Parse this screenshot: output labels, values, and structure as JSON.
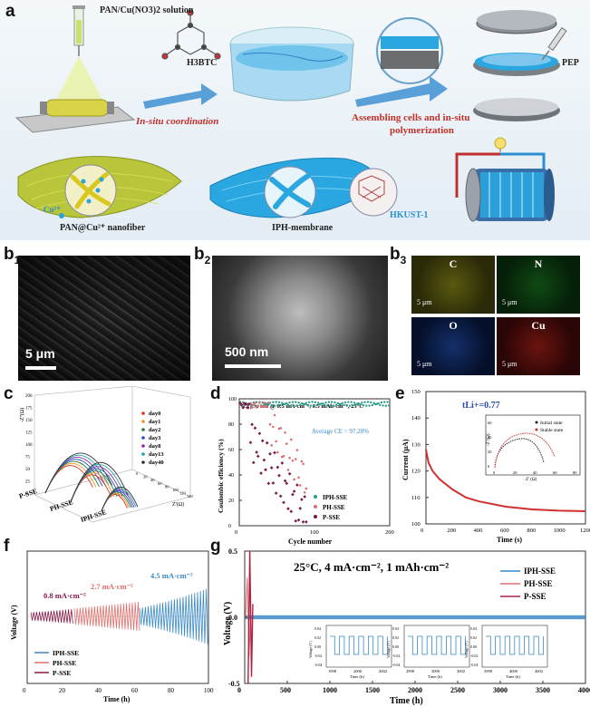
{
  "panel_a": {
    "label": "a",
    "solution_label": "PAN/Cu(NO3)2 solution",
    "linker_label": "H3BTC",
    "step1_label": "In-situ coordination",
    "step2_label_1": "Assembling cells and in-situ",
    "step2_label_2": "polymerization",
    "pep_label": "PEP",
    "nanofiber_label": "PAN@Cu²⁺ nanofiber",
    "cu_label": "Cu²⁺",
    "membrane_label": "IPH-membrane",
    "mof_label": "HKUST-1",
    "colors": {
      "membrane_blue": "#2aa7e0",
      "fiber_green": "#b9c63a",
      "arrow_blue": "#5aa0d8",
      "step_red": "#c0302a"
    }
  },
  "panel_b1": {
    "label": "b",
    "sub": "1",
    "scale": "5 μm"
  },
  "panel_b2": {
    "label": "b",
    "sub": "2",
    "scale": "500 nm"
  },
  "panel_b3": {
    "label": "b",
    "sub": "3",
    "maps": [
      {
        "element": "C",
        "scale": "5 μm",
        "color": "#c8c43a"
      },
      {
        "element": "N",
        "scale": "5 μm",
        "color": "#2fae3a"
      },
      {
        "element": "O",
        "scale": "5 μm",
        "color": "#2d5fd0"
      },
      {
        "element": "Cu",
        "scale": "5 μm",
        "color": "#d8342c"
      }
    ]
  },
  "chart_data": [
    {
      "panel": "c",
      "type": "line",
      "ylabel": "-Z''(Ω)",
      "xlabel": "Z'(Ω)",
      "categories": [
        "P-SSE",
        "PH-SSE",
        "IPH-SSE"
      ],
      "legend": [
        "day0",
        "day1",
        "day2",
        "day3",
        "day8",
        "day13",
        "day40"
      ],
      "legend_colors": [
        "#e03020",
        "#e89a20",
        "#2c7a3a",
        "#2050c0",
        "#8a2aa0",
        "#1aa0b0",
        "#303030"
      ],
      "yticks": [
        "0",
        "25",
        "50",
        "75",
        "100",
        "125",
        "150",
        "175",
        "200"
      ],
      "xticks": [
        "0",
        "20",
        "40",
        "60",
        "80",
        "100",
        "120",
        "140"
      ]
    },
    {
      "panel": "d",
      "type": "scatter",
      "title": "Li||Cu cell @ 0.5 mA·cm⁻², 0.5 mAh·cm⁻², 25°C",
      "annotation": "Average CE = 97.28%",
      "xlabel": "Cycle number",
      "ylabel": "Coulombic efficiency (%)",
      "xlim": [
        0,
        200
      ],
      "ylim": [
        0,
        100
      ],
      "xticks": [
        "0",
        "100",
        "200"
      ],
      "yticks": [
        "0",
        "20",
        "40",
        "60",
        "80",
        "100"
      ],
      "series": [
        {
          "name": "IPH-SSE",
          "color": "#2a9a8a"
        },
        {
          "name": "PH-SSE",
          "color": "#e07070"
        },
        {
          "name": "P-SSE",
          "color": "#7a1a4a"
        }
      ]
    },
    {
      "panel": "e",
      "type": "line",
      "annotation": "tLi+=0.77",
      "xlabel": "Time (s)",
      "ylabel": "Current (μA)",
      "xlim": [
        0,
        1200
      ],
      "ylim": [
        100,
        150
      ],
      "xticks": [
        "0",
        "200",
        "400",
        "600",
        "800",
        "1000",
        "1200"
      ],
      "yticks": [
        "100",
        "110",
        "120",
        "130",
        "140",
        "150"
      ],
      "series": [
        {
          "name": "current",
          "x": [
            0,
            20,
            50,
            100,
            200,
            300,
            400,
            600,
            800,
            1000,
            1200
          ],
          "y": [
            128,
            123,
            120,
            117,
            113,
            110,
            108.5,
            106.5,
            105.5,
            105,
            104.8
          ]
        }
      ],
      "inset": {
        "xlabel": "Z' (Ω)",
        "ylabel": "-Z''(Ω)",
        "xticks": [
          "0",
          "20",
          "40",
          "60",
          "80"
        ],
        "yticks": [
          "0",
          "20",
          "40",
          "60"
        ],
        "legend": [
          "Initial state",
          "Stable state"
        ],
        "legend_colors": [
          "#222222",
          "#d03030"
        ]
      }
    },
    {
      "panel": "f",
      "type": "line",
      "xlabel": "Time (h)",
      "ylabel": "Voltage (V)",
      "xlim": [
        0,
        100
      ],
      "xticks": [
        "0",
        "20",
        "40",
        "60",
        "80",
        "100"
      ],
      "rate_labels": [
        "0.8 mA·cm⁻²",
        "2.7 mA·cm⁻²",
        "4.5 mA·cm⁻²"
      ],
      "rate_colors": [
        "#8a1a4a",
        "#e06a6a",
        "#3a8ac8"
      ],
      "series": [
        {
          "name": "IPH-SSE",
          "color": "#3a8ac8"
        },
        {
          "name": "PH-SSE",
          "color": "#e07070"
        },
        {
          "name": "P-SSE",
          "color": "#8a1a4a"
        }
      ]
    },
    {
      "panel": "g",
      "type": "line",
      "title": "25°C, 4 mA·cm⁻², 1 mAh·cm⁻²",
      "xlabel": "Time (h)",
      "ylabel": "Voltage (V)",
      "xlim": [
        0,
        4000
      ],
      "ylim": [
        -0.5,
        0.5
      ],
      "xticks": [
        "0",
        "500",
        "1000",
        "1500",
        "2000",
        "2500",
        "3000",
        "3500",
        "4000"
      ],
      "yticks": [
        "-0.5",
        "0.0",
        "0.5"
      ],
      "series": [
        {
          "name": "IPH-SSE",
          "color": "#3a8ac8"
        },
        {
          "name": "PH-SSE",
          "color": "#e07070"
        },
        {
          "name": "P-SSE",
          "color": "#b02040"
        }
      ],
      "insets": [
        {
          "xticks": [
            "1998",
            "2000",
            "2002"
          ],
          "yticks": [
            "0.04",
            "0.02",
            "0.00",
            "-0.02",
            "-0.04"
          ],
          "xlabel": "Time (h)",
          "ylabel": "Voltage (V)"
        },
        {
          "xticks": [
            "2998",
            "3000",
            "3002"
          ],
          "yticks": [
            "0.04",
            "0.02",
            "0.00",
            "-0.02",
            "-0.04"
          ],
          "xlabel": "Time (h)",
          "ylabel": "Voltage (V)"
        },
        {
          "xticks": [
            "3998",
            "4000",
            "4002"
          ],
          "yticks": [
            "0.04",
            "0.02",
            "0.00",
            "-0.02",
            "-0.04"
          ],
          "xlabel": "Time (h)",
          "ylabel": "Voltage (V)"
        }
      ]
    }
  ]
}
